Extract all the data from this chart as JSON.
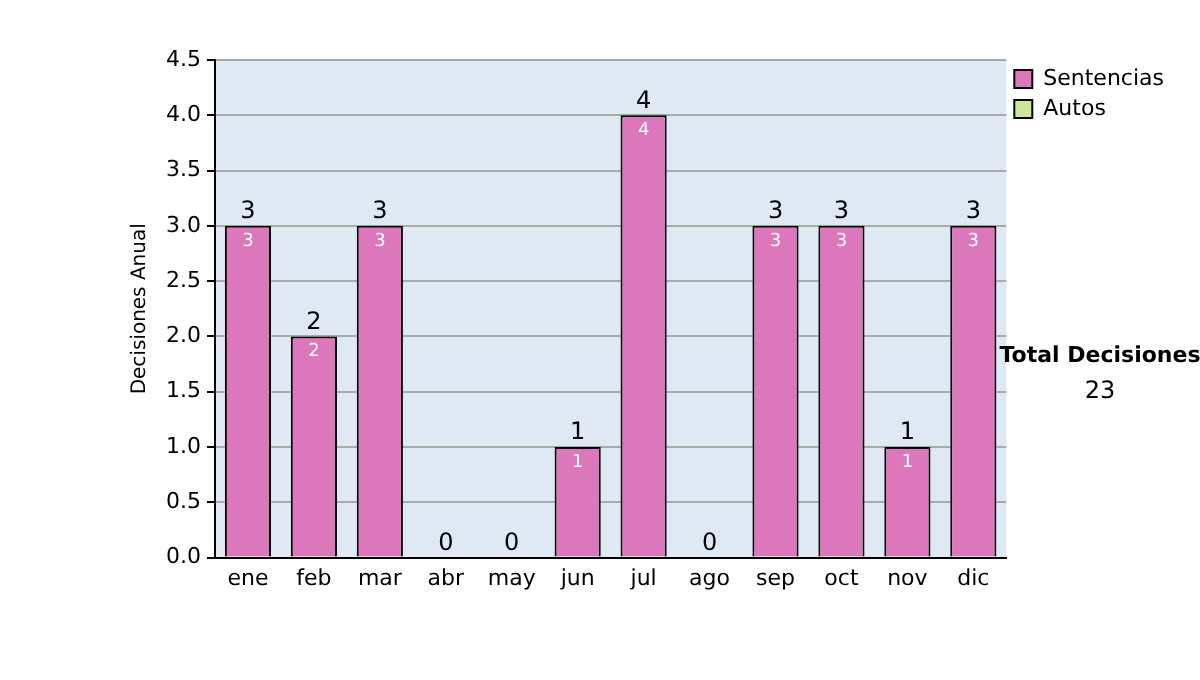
{
  "chart_data": {
    "type": "bar",
    "ylabel": "Decisiones Anual",
    "categories": [
      "ene",
      "feb",
      "mar",
      "abr",
      "may",
      "jun",
      "jul",
      "ago",
      "sep",
      "oct",
      "nov",
      "dic"
    ],
    "series": [
      {
        "name": "Sentencias",
        "color": "#dd77bb",
        "values": [
          3,
          2,
          3,
          0,
          0,
          1,
          4,
          0,
          3,
          3,
          1,
          3
        ],
        "value_labels": [
          "3",
          "2",
          "3",
          null,
          null,
          "1",
          "4",
          null,
          "3",
          "3",
          "1",
          "3"
        ]
      },
      {
        "name": "Autos",
        "color": "#cce898",
        "values": [
          0,
          0,
          0,
          0,
          0,
          0,
          0,
          0,
          0,
          0,
          0,
          0
        ]
      }
    ],
    "stacked": true,
    "totals": [
      "3",
      "2",
      "3",
      "0",
      "0",
      "1",
      "4",
      "0",
      "3",
      "3",
      "1",
      "3"
    ],
    "ylim": [
      0,
      4.5
    ],
    "yticks": [
      {
        "value": 0,
        "label": "0.0"
      },
      {
        "value": 0.5,
        "label": "0.5"
      },
      {
        "value": 1,
        "label": "1.0"
      },
      {
        "value": 1.5,
        "label": "1.5"
      },
      {
        "value": 2,
        "label": "2.0"
      },
      {
        "value": 2.5,
        "label": "2.5"
      },
      {
        "value": 3,
        "label": "3.0"
      },
      {
        "value": 3.5,
        "label": "3.5"
      },
      {
        "value": 4,
        "label": "4.0"
      },
      {
        "value": 4.5,
        "label": "4.5"
      }
    ],
    "grid": "y",
    "legend": "right",
    "annotations": [
      "Total Decisiones",
      "23"
    ]
  }
}
